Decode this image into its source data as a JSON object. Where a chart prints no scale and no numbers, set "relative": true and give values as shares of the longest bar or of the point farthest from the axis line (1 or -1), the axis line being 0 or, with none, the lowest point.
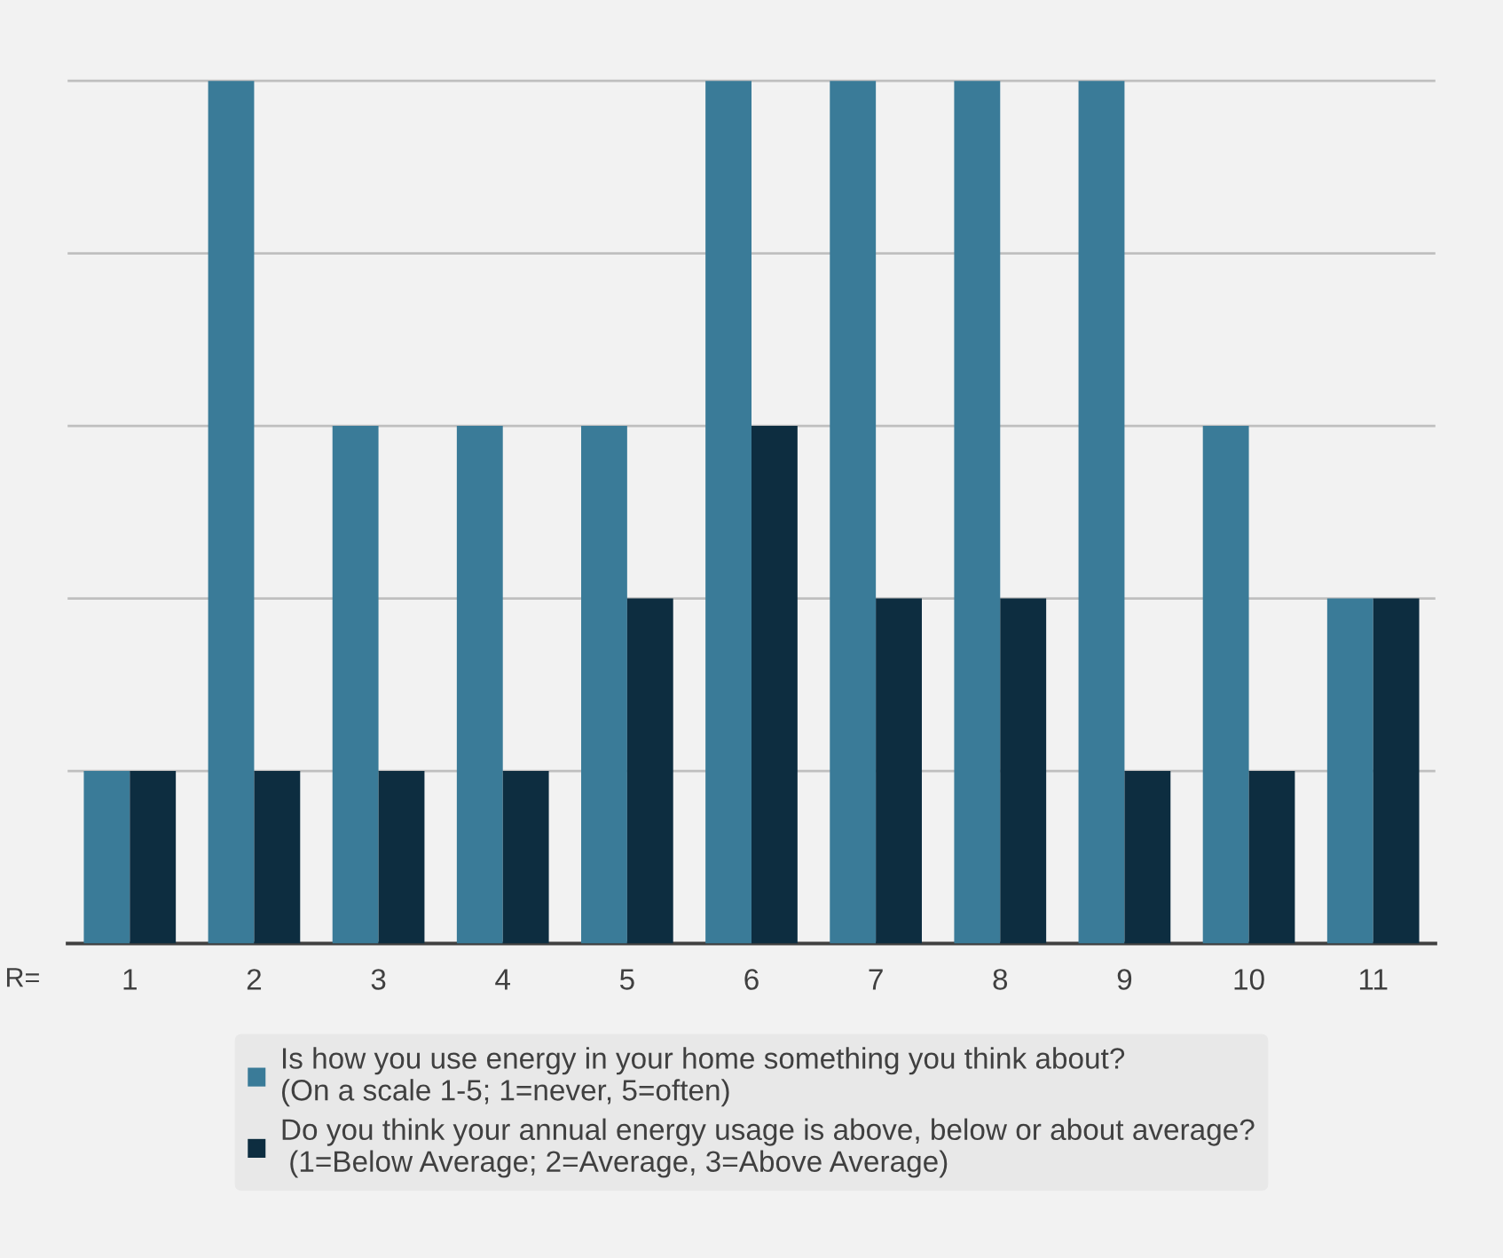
{
  "chart_data": {
    "type": "bar",
    "relative": true,
    "categories": [
      "1",
      "2",
      "3",
      "4",
      "5",
      "6",
      "7",
      "8",
      "9",
      "10",
      "11"
    ],
    "series": [
      {
        "name": "Is how you use energy in your home something you think about?\n(On a scale 1-5; 1=never, 5=often)",
        "color": "#3a7b98",
        "values": [
          0.2,
          1,
          0.6,
          0.6,
          0.6,
          1,
          1,
          1,
          1,
          0.6,
          0.4
        ]
      },
      {
        "name": "Do you think your annual energy usage is above, below or about average?\n (1=Below Average; 2=Average, 3=Above Average)",
        "color": "#0d2d40",
        "values": [
          0.2,
          0.2,
          0.2,
          0.2,
          0.4,
          0.6,
          0.4,
          0.4,
          0.2,
          0.2,
          0.4
        ]
      }
    ],
    "annotations": [
      "R="
    ],
    "grid": "y",
    "legend": "bottom"
  }
}
